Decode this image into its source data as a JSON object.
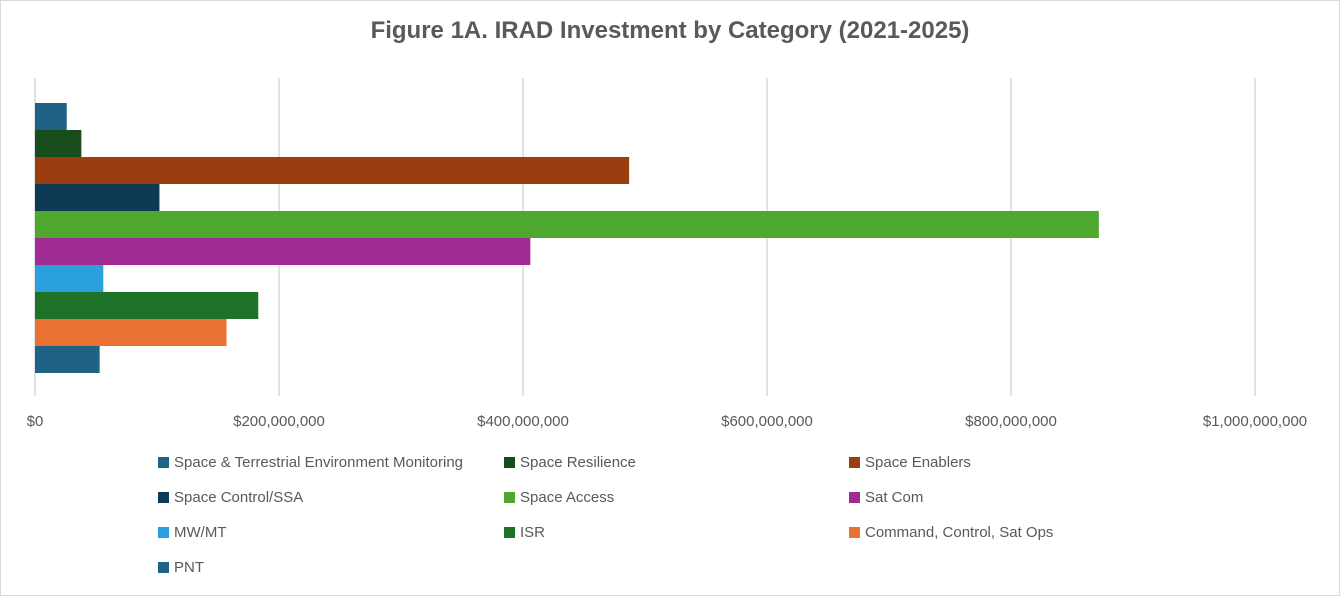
{
  "chart_data": {
    "type": "bar",
    "orientation": "horizontal",
    "title": "Figure 1A. IRAD Investment by Category (2021-2025)",
    "xlim": [
      0,
      1000000000
    ],
    "x_ticks": [
      0,
      200000000,
      400000000,
      600000000,
      800000000,
      1000000000
    ],
    "x_tick_labels": [
      "$0",
      "$200,000,000",
      "$400,000,000",
      "$600,000,000",
      "$800,000,000",
      "$1,000,000,000"
    ],
    "grid": true,
    "legend_position": "bottom",
    "series": [
      {
        "name": "Space & Terrestrial Environment Monitoring",
        "value": 26000000,
        "color": "#1f6286"
      },
      {
        "name": "Space Resilience",
        "value": 38000000,
        "color": "#174d1b"
      },
      {
        "name": "Space Enablers",
        "value": 487000000,
        "color": "#9a3e10"
      },
      {
        "name": "Space Control/SSA",
        "value": 102000000,
        "color": "#0d3a54"
      },
      {
        "name": "Space Access",
        "value": 872000000,
        "color": "#4ea72e"
      },
      {
        "name": "Sat Com",
        "value": 406000000,
        "color": "#a02b93"
      },
      {
        "name": "MW/MT",
        "value": 56000000,
        "color": "#2aa0dc"
      },
      {
        "name": "ISR",
        "value": 183000000,
        "color": "#1e7328"
      },
      {
        "name": "Command, Control, Sat Ops",
        "value": 157000000,
        "color": "#e97132"
      },
      {
        "name": "PNT",
        "value": 53000000,
        "color": "#1f6286"
      }
    ]
  }
}
